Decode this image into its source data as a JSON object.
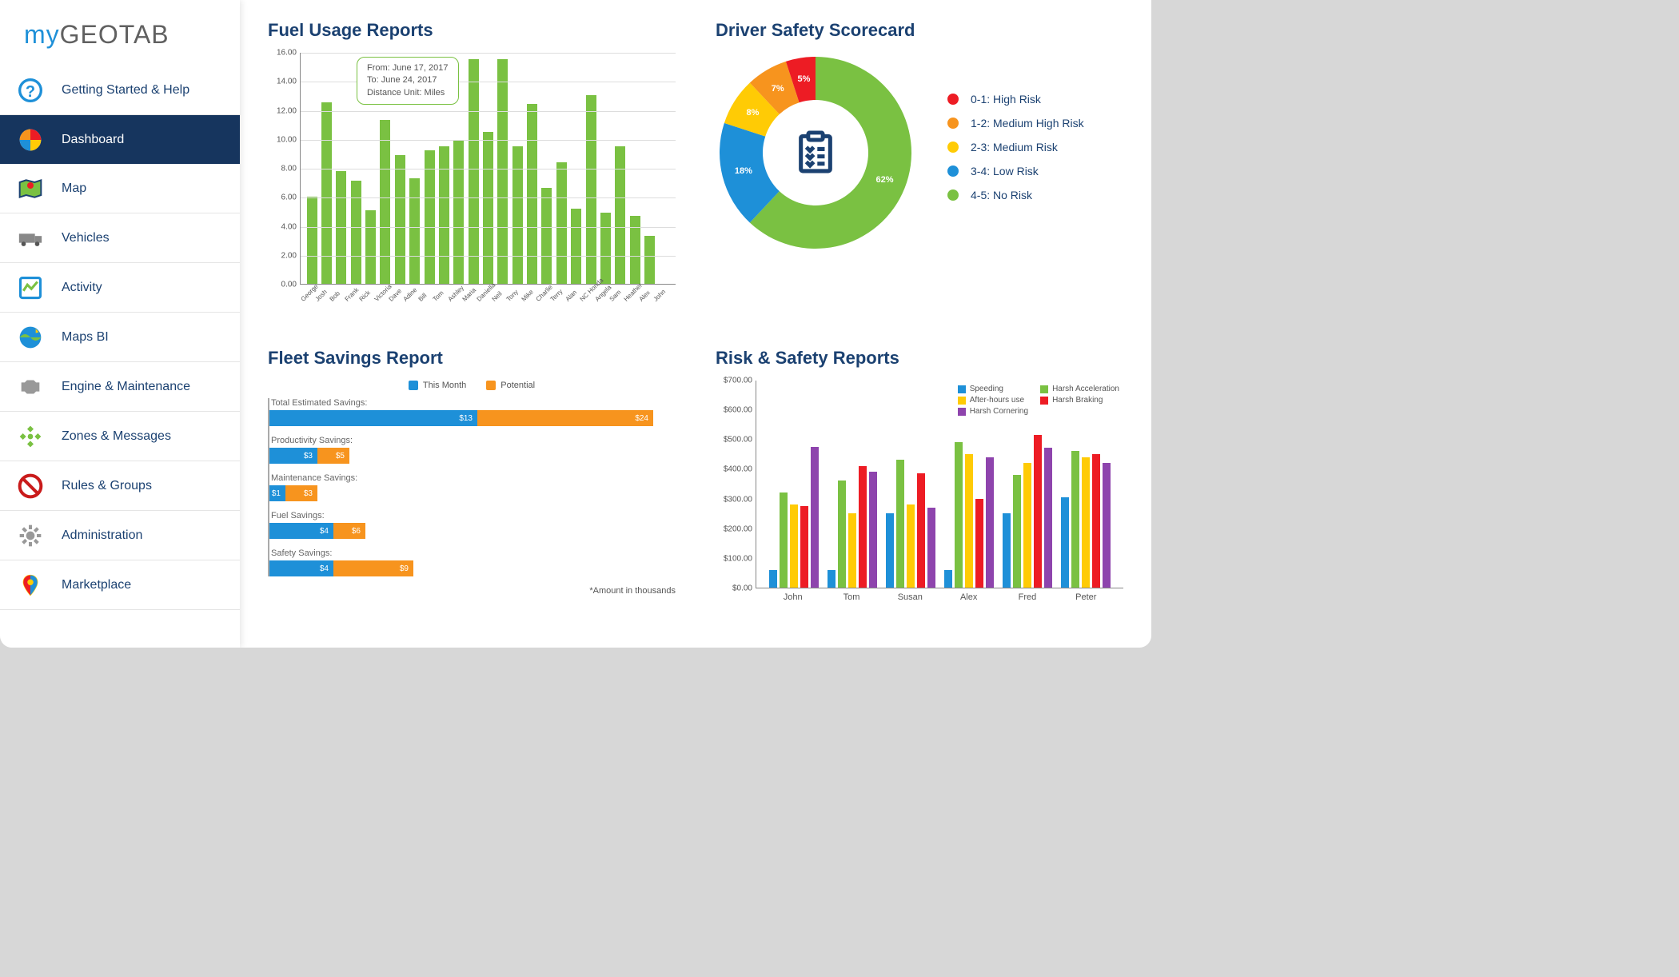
{
  "logo": {
    "part1": "my",
    "part2": "GEOTAB"
  },
  "sidebar": {
    "items": [
      {
        "label": "Getting Started & Help",
        "icon": "help"
      },
      {
        "label": "Dashboard",
        "icon": "dashboard",
        "active": true
      },
      {
        "label": "Map",
        "icon": "map"
      },
      {
        "label": "Vehicles",
        "icon": "vehicles"
      },
      {
        "label": "Activity",
        "icon": "activity"
      },
      {
        "label": "Maps BI",
        "icon": "mapsbi"
      },
      {
        "label": "Engine & Maintenance",
        "icon": "engine"
      },
      {
        "label": "Zones & Messages",
        "icon": "zones"
      },
      {
        "label": "Rules & Groups",
        "icon": "rules"
      },
      {
        "label": "Administration",
        "icon": "admin"
      },
      {
        "label": "Marketplace",
        "icon": "marketplace"
      }
    ]
  },
  "fuel": {
    "title": "Fuel Usage Reports",
    "tooltip": {
      "line1": "From: June 17, 2017",
      "line2": "To: June 24, 2017",
      "line3": "Distance Unit: Miles"
    },
    "ymax": 16,
    "ytick_step": 2,
    "yticks": [
      "0.00",
      "2.00",
      "4.00",
      "6.00",
      "8.00",
      "10.00",
      "12.00",
      "14.00",
      "16.00"
    ],
    "bar_color": "#7ac142",
    "grid_color": "#dddddd",
    "categories": [
      "George",
      "Josh",
      "Bob",
      "Frank",
      "Rick",
      "Victoria",
      "Dave",
      "Adine",
      "Bill",
      "Tom",
      "Ashley",
      "Maria",
      "Daniella",
      "Neil",
      "Tony",
      "Mike",
      "Charlie",
      "Terry",
      "Alan",
      "NC Honda",
      "Angela",
      "Sam",
      "Heather",
      "Alex",
      "John"
    ],
    "values": [
      6.0,
      12.5,
      7.8,
      7.1,
      5.1,
      11.3,
      8.9,
      7.3,
      9.2,
      9.5,
      9.9,
      15.5,
      10.5,
      15.5,
      9.5,
      12.4,
      6.6,
      8.4,
      5.2,
      13.0,
      4.9,
      9.5,
      4.7,
      3.3,
      0
    ]
  },
  "scorecard": {
    "title": "Driver Safety Scorecard",
    "slices": [
      {
        "label": "62%",
        "value": 62,
        "color": "#7ac142"
      },
      {
        "label": "18%",
        "value": 18,
        "color": "#1e90d8"
      },
      {
        "label": "8%",
        "value": 8,
        "color": "#ffcb05"
      },
      {
        "label": "7%",
        "value": 7,
        "color": "#f7941e"
      },
      {
        "label": "5%",
        "value": 5,
        "color": "#ed1c24"
      }
    ],
    "start_angle_deg": 90,
    "inner_radius": 0.55,
    "legend": [
      {
        "color": "#ed1c24",
        "text": "0-1: High Risk"
      },
      {
        "color": "#f7941e",
        "text": "1-2: Medium High Risk"
      },
      {
        "color": "#ffcb05",
        "text": "2-3: Medium Risk"
      },
      {
        "color": "#1e90d8",
        "text": "3-4: Low Risk"
      },
      {
        "color": "#7ac142",
        "text": "4-5: No Risk"
      }
    ],
    "center_icon_color": "#1b4171"
  },
  "fleet": {
    "title": "Fleet Savings Report",
    "legend": [
      {
        "color": "#1e90d8",
        "text": "This Month"
      },
      {
        "color": "#f7941e",
        "text": "Potential"
      }
    ],
    "max": 24,
    "color_this": "#1e90d8",
    "color_potential": "#f7941e",
    "rows": [
      {
        "label": "Total Estimated Savings:",
        "this_val": 13,
        "pot_val": 24,
        "this_text": "$13",
        "pot_text": "$24"
      },
      {
        "label": "Productivity Savings:",
        "this_val": 3,
        "pot_val": 5,
        "this_text": "$3",
        "pot_text": "$5"
      },
      {
        "label": "Maintenance Savings:",
        "this_val": 1,
        "pot_val": 3,
        "this_text": "$1",
        "pot_text": "$3"
      },
      {
        "label": "Fuel Savings:",
        "this_val": 4,
        "pot_val": 6,
        "this_text": "$4",
        "pot_text": "$6"
      },
      {
        "label": "Safety Savings:",
        "this_val": 4,
        "pot_val": 9,
        "this_text": "$4",
        "pot_text": "$9"
      }
    ],
    "note": "*Amount in thousands"
  },
  "risk": {
    "title": "Risk & Safety Reports",
    "ymax": 700,
    "ytick_step": 100,
    "yticks": [
      "$0.00",
      "$100.00",
      "$200.00",
      "$300.00",
      "$400.00",
      "$500.00",
      "$600.00",
      "$700.00"
    ],
    "series": [
      {
        "name": "Speeding",
        "color": "#1e90d8"
      },
      {
        "name": "Harsh Acceleration",
        "color": "#7ac142"
      },
      {
        "name": "After-hours use",
        "color": "#ffcb05"
      },
      {
        "name": "Harsh Braking",
        "color": "#ed1c24"
      },
      {
        "name": "Harsh Cornering",
        "color": "#8e44ad"
      }
    ],
    "legend_order": [
      0,
      1,
      2,
      3,
      4
    ],
    "categories": [
      "John",
      "Tom",
      "Susan",
      "Alex",
      "Fred",
      "Peter"
    ],
    "values_by_series": [
      [
        60,
        60,
        250,
        60,
        250,
        305
      ],
      [
        320,
        360,
        430,
        490,
        380,
        460
      ],
      [
        280,
        250,
        280,
        450,
        420,
        440
      ],
      [
        275,
        410,
        385,
        300,
        515,
        450
      ],
      [
        475,
        390,
        270,
        440,
        470,
        420
      ]
    ]
  }
}
